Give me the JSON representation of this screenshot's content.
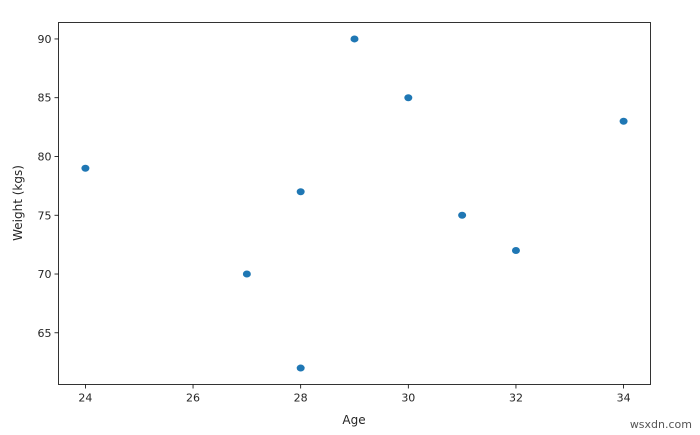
{
  "chart_data": {
    "type": "scatter",
    "title": "",
    "xlabel": "Age",
    "ylabel": "Weight (kgs)",
    "xlim": [
      23.5,
      34.5
    ],
    "ylim": [
      60.6,
      91.4
    ],
    "xticks": [
      24,
      26,
      28,
      30,
      32,
      34
    ],
    "yticks": [
      65,
      70,
      75,
      80,
      85,
      90
    ],
    "grid": false,
    "color": "#1f77b4",
    "points": [
      {
        "x": 24,
        "y": 79
      },
      {
        "x": 27,
        "y": 70
      },
      {
        "x": 28,
        "y": 77
      },
      {
        "x": 28,
        "y": 62
      },
      {
        "x": 29,
        "y": 90
      },
      {
        "x": 30,
        "y": 85
      },
      {
        "x": 31,
        "y": 75
      },
      {
        "x": 32,
        "y": 72
      },
      {
        "x": 34,
        "y": 83
      }
    ]
  },
  "watermark": "wsxdn.com"
}
